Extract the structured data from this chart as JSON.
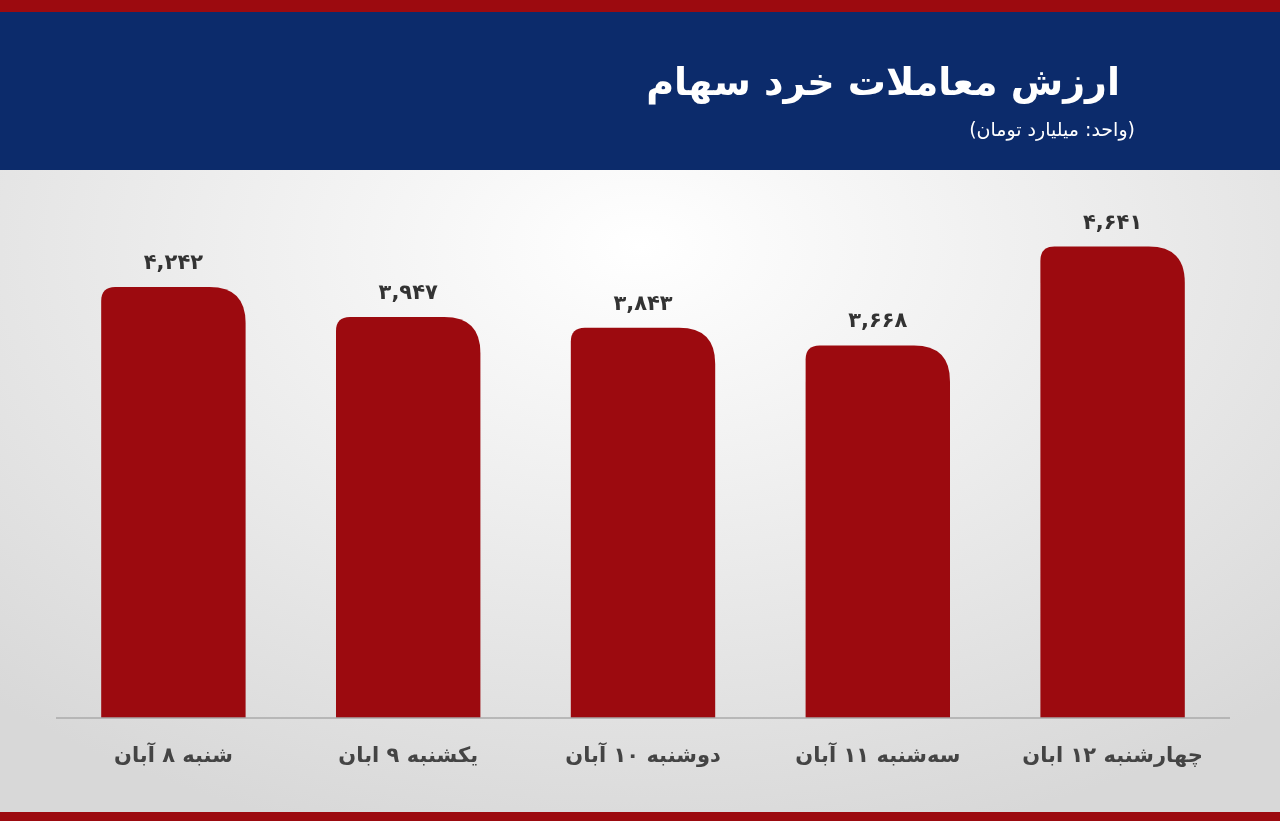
{
  "chart_data": {
    "type": "bar",
    "title": "ارزش معاملات خرد سهام",
    "subtitle": "(واحد: میلیارد تومان)",
    "categories": [
      "شنبه ۸ آبان",
      "یکشنبه ۹ ابان",
      "دوشنبه ۱۰ آبان",
      "سه‌شنبه ۱۱ آبان",
      "چهارشنبه ۱۲ ابان"
    ],
    "values": [
      4242,
      3947,
      3843,
      3668,
      4641
    ],
    "value_labels": [
      "۴,۲۴۲",
      "۳,۹۴۷",
      "۳,۸۴۳",
      "۳,۶۶۸",
      "۴,۶۴۱"
    ],
    "color": "#9c0a0f"
  }
}
